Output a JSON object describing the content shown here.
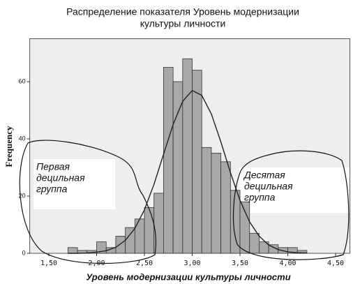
{
  "chart_data": {
    "type": "histogram",
    "title": [
      "Распределение показателя Уровень модернизации",
      "культуры личности"
    ],
    "xlabel": "Уровень модернизации культуры личности",
    "ylabel": "Frequency",
    "bins": [
      1.7,
      1.8,
      1.9,
      2.0,
      2.1,
      2.2,
      2.3,
      2.4,
      2.5,
      2.6,
      2.7,
      2.8,
      2.9,
      3.0,
      3.1,
      3.2,
      3.3,
      3.4,
      3.5,
      3.6,
      3.7,
      3.8,
      3.9,
      4.0,
      4.1,
      4.2
    ],
    "values": [
      2,
      1,
      1,
      4,
      2,
      6,
      9,
      12,
      16,
      21,
      65,
      60,
      68,
      64,
      37,
      35,
      32,
      22,
      18,
      7,
      4,
      3,
      2,
      2,
      1
    ],
    "color": "#a8a8a8",
    "curve": {
      "x": [
        1.7,
        1.8,
        1.9,
        2.0,
        2.1,
        2.2,
        2.3,
        2.4,
        2.5,
        2.6,
        2.7,
        2.8,
        2.9,
        3.0,
        3.1,
        3.2,
        3.3,
        3.4,
        3.5,
        3.6,
        3.7,
        3.8,
        3.9,
        4.0,
        4.1,
        4.2
      ],
      "values": [
        0,
        0,
        0.1,
        0.4,
        0.9,
        2.1,
        4.5,
        8.7,
        15.2,
        24.1,
        34.6,
        45,
        53.1,
        56.9,
        55.2,
        48.7,
        38.9,
        28.2,
        18.5,
        11,
        6,
        2.9,
        1.3,
        0.5,
        0.2,
        0.1
      ],
      "color": "#222222"
    },
    "xlim": [
      1.3,
      4.65
    ],
    "ylim": [
      0,
      75
    ],
    "xticks": [
      {
        "value": 1.5,
        "label": "1,50"
      },
      {
        "value": 2.0,
        "label": "2,00"
      },
      {
        "value": 2.5,
        "label": "2,50"
      },
      {
        "value": 3.0,
        "label": "3,00"
      },
      {
        "value": 3.5,
        "label": "3,50"
      },
      {
        "value": 4.0,
        "label": "4,00"
      },
      {
        "value": 4.5,
        "label": "4,50"
      }
    ],
    "yticks": [
      0,
      20,
      40,
      60
    ],
    "annotations": [
      {
        "lines": [
          "Первая",
          "децильная",
          "группа"
        ]
      },
      {
        "lines": [
          "Десятая",
          "децильная",
          "группа"
        ]
      }
    ]
  }
}
